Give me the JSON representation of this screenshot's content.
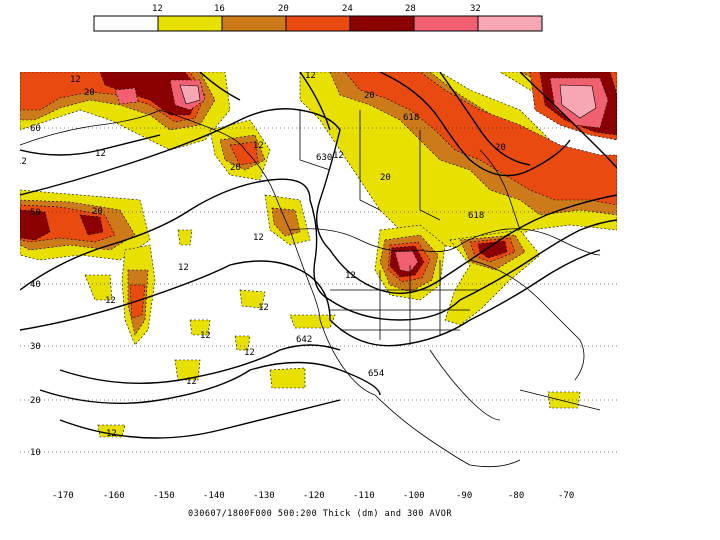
{
  "legend": {
    "colors": [
      "#ffffff",
      "#e8e000",
      "#cc7a1a",
      "#e84a10",
      "#8b0000",
      "#f06070",
      "#f7a7b4"
    ],
    "labels": [
      "12",
      "16",
      "20",
      "24",
      "28",
      "32"
    ]
  },
  "axes": {
    "lon_labels": [
      "-170",
      "-160",
      "-150",
      "-140",
      "-130",
      "-120",
      "-110",
      "-100",
      "-90",
      "-80",
      "-70"
    ],
    "lat_labels": [
      "60",
      "50",
      "40",
      "30",
      "20",
      "10"
    ]
  },
  "contour_labels": [
    "12",
    "20",
    "12",
    "618",
    "20",
    "630",
    "12",
    "12",
    "20",
    "12",
    "20",
    "12",
    "12",
    "12",
    "12",
    "12",
    "12",
    "12",
    "642",
    "12",
    "654",
    "12",
    "20",
    "618",
    "20",
    "12"
  ],
  "caption": "030607/1800F000 500:200 Thick (dm) and 300 AVOR",
  "colors": {
    "c12": "#e8e000",
    "c16": "#cc7a1a",
    "c20": "#e84a10",
    "c24": "#8b0000",
    "c28": "#f06070",
    "c32": "#f7a7b4"
  }
}
